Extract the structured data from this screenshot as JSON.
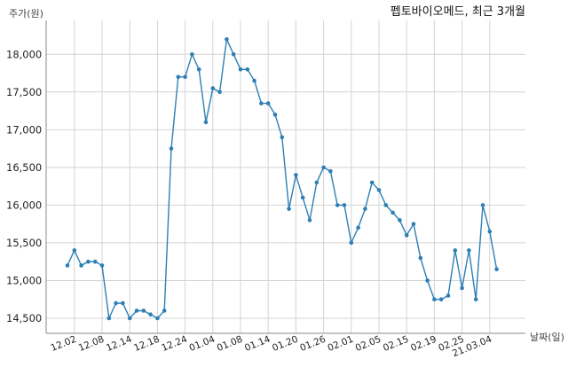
{
  "chart_data": {
    "type": "line",
    "title": "펩토바이오메드, 최근 3개월",
    "ylabel": "주가(원)",
    "xlabel": "날짜(일)",
    "ylim": [
      14300,
      18450
    ],
    "yticks": [
      14500,
      15000,
      15500,
      16000,
      16500,
      17000,
      17500,
      18000
    ],
    "ytick_labels": [
      "14,500",
      "15,000",
      "15,500",
      "16,000",
      "16,500",
      "17,000",
      "17,500",
      "18,000"
    ],
    "xtick_labels": [
      "12.02",
      "12.08",
      "12.14",
      "12.18",
      "12.24",
      "01.04",
      "01.08",
      "01.14",
      "01.20",
      "01.26",
      "02.01",
      "02.05",
      "02.15",
      "02.19",
      "02.25",
      "21.03.04"
    ],
    "xtick_indices": [
      1,
      5,
      9,
      13,
      17,
      21,
      25,
      29,
      33,
      37,
      41,
      45,
      49,
      53,
      57,
      61
    ],
    "grid": true,
    "color": "#2e7fb5",
    "values": [
      15200,
      15400,
      15200,
      15250,
      15250,
      15200,
      14500,
      14700,
      14700,
      14500,
      14600,
      14600,
      14550,
      14500,
      14600,
      16750,
      17700,
      17700,
      18000,
      17800,
      17100,
      17550,
      17500,
      18200,
      18000,
      17800,
      17800,
      17650,
      17350,
      17350,
      17200,
      16900,
      15950,
      16400,
      16100,
      15800,
      16300,
      16500,
      16450,
      16000,
      16000,
      15500,
      15700,
      15950,
      16300,
      16200,
      16000,
      15900,
      15800,
      15600,
      15750,
      15300,
      15000,
      14750,
      14750,
      14800,
      15400,
      14900,
      15400,
      14750,
      16000,
      15650,
      15150
    ]
  }
}
